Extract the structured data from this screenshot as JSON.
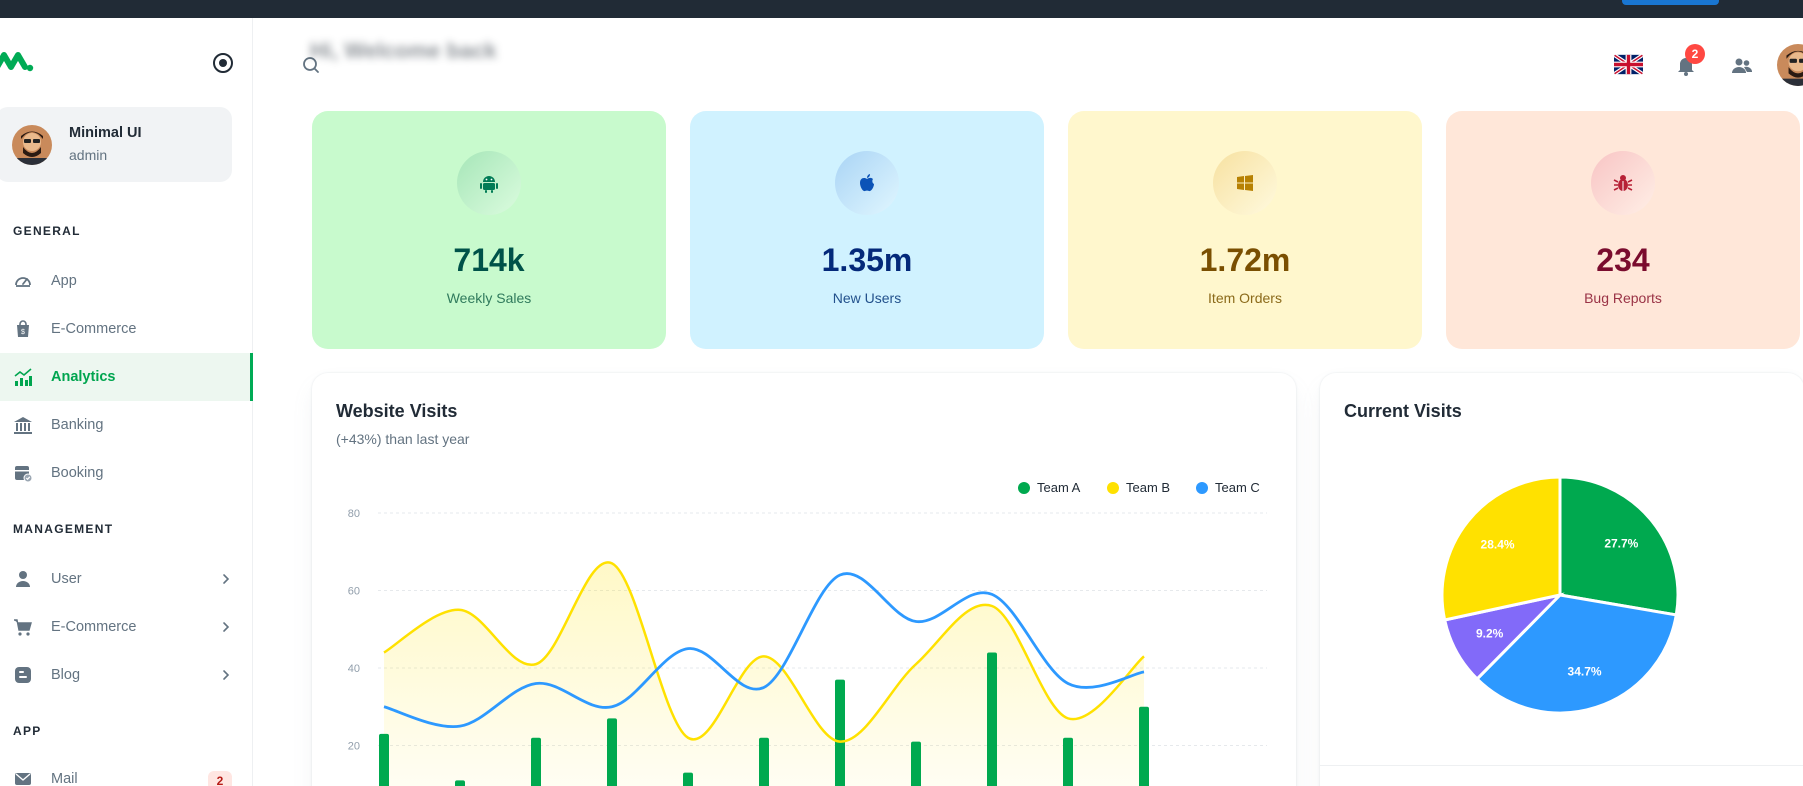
{
  "colors": {
    "primary": "#00ab55",
    "team_a": "#00a94f",
    "team_b": "#ffe100",
    "team_c": "#2d99ff",
    "purple": "#826af9",
    "danger": "#ff4842"
  },
  "sidebar": {
    "account": {
      "name": "Minimal UI",
      "role": "admin"
    },
    "sections": [
      {
        "title": "GENERAL",
        "items": [
          {
            "label": "App",
            "icon": "dashboard-icon"
          },
          {
            "label": "E-Commerce",
            "icon": "shopping-bag-icon"
          },
          {
            "label": "Analytics",
            "icon": "analytics-icon",
            "active": true
          },
          {
            "label": "Banking",
            "icon": "bank-icon"
          },
          {
            "label": "Booking",
            "icon": "calendar-icon"
          }
        ]
      },
      {
        "title": "MANAGEMENT",
        "items": [
          {
            "label": "User",
            "icon": "user-icon"
          },
          {
            "label": "E-Commerce",
            "icon": "cart-icon"
          },
          {
            "label": "Blog",
            "icon": "blog-icon"
          }
        ]
      },
      {
        "title": "APP",
        "items": [
          {
            "label": "Mail",
            "icon": "mail-icon",
            "badge": "2"
          }
        ]
      }
    ]
  },
  "header": {
    "welcome": "Hi, Welcome back",
    "notifications_count": "2"
  },
  "stats": [
    {
      "value": "714k",
      "label": "Weekly Sales",
      "icon": "android-icon",
      "bg": "#c8facd",
      "circle": "#a6e6b8",
      "icon_color": "#007b55",
      "value_color": "#005249",
      "label_color": "#2f7a5c"
    },
    {
      "value": "1.35m",
      "label": "New Users",
      "icon": "apple-icon",
      "bg": "#d0f2ff",
      "circle": "#a9d4f5",
      "icon_color": "#0c53b7",
      "value_color": "#04297a",
      "label_color": "#22518c"
    },
    {
      "value": "1.72m",
      "label": "Item Orders",
      "icon": "windows-icon",
      "bg": "#fff7cd",
      "circle": "#f7e1a0",
      "icon_color": "#b78103",
      "value_color": "#7a4f01",
      "label_color": "#8b6a1a"
    },
    {
      "value": "234",
      "label": "Bug Reports",
      "icon": "bug-icon",
      "bg": "#ffe7d9",
      "circle": "#f8c4c4",
      "icon_color": "#b72136",
      "value_color": "#7a0c2e",
      "label_color": "#9a3346"
    }
  ],
  "chart_data": [
    {
      "type": "bar+line",
      "title": "Website Visits",
      "subtitle": "(+43%) than last year",
      "legend": [
        "Team A",
        "Team B",
        "Team C"
      ],
      "yticks": [
        20,
        40,
        60,
        80
      ],
      "ylim": [
        0,
        80
      ],
      "series": [
        {
          "name": "Team A",
          "type": "bar",
          "values": [
            23,
            11,
            22,
            27,
            13,
            22,
            37,
            21,
            44,
            22,
            30
          ]
        },
        {
          "name": "Team B",
          "type": "area",
          "values": [
            44,
            55,
            41,
            67,
            22,
            43,
            21,
            41,
            56,
            27,
            43
          ]
        },
        {
          "name": "Team C",
          "type": "line",
          "values": [
            30,
            25,
            36,
            30,
            45,
            35,
            64,
            52,
            59,
            36,
            39
          ]
        }
      ]
    },
    {
      "type": "pie",
      "title": "Current Visits",
      "slices": [
        {
          "label": "27.7%",
          "value": 27.7,
          "color": "#00a94f"
        },
        {
          "label": "34.7%",
          "value": 34.7,
          "color": "#2d99ff"
        },
        {
          "label": "9.2%",
          "value": 9.2,
          "color": "#826af9"
        },
        {
          "label": "28.4%",
          "value": 28.4,
          "color": "#ffe100"
        }
      ]
    }
  ]
}
